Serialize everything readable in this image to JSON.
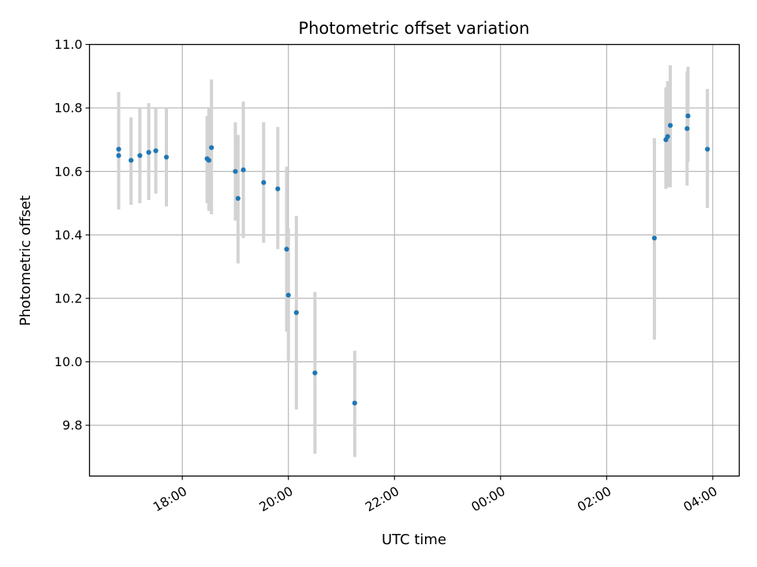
{
  "colors": {
    "point": "#1f77b4",
    "errorbar": "#d3d3d3",
    "grid": "#b0b0b0",
    "axis": "#000000"
  },
  "chart_data": {
    "type": "scatter",
    "title": "Photometric offset variation",
    "xlabel": "UTC time",
    "ylabel": "Photometric offset",
    "grid": true,
    "x_time_zero": "16:00",
    "xlim_hours": [
      16.25,
      28.5
    ],
    "ylim": [
      9.64,
      11.0
    ],
    "x_ticks": [
      "18:00",
      "20:00",
      "22:00",
      "00:00",
      "02:00",
      "04:00"
    ],
    "y_ticks": [
      "9.8",
      "10.0",
      "10.2",
      "10.4",
      "10.6",
      "10.8",
      "11.0"
    ],
    "points": [
      {
        "t": "16:48",
        "y": 10.67,
        "err_lo": 10.48,
        "err_hi": 10.85
      },
      {
        "t": "16:48",
        "y": 10.65,
        "err_lo": 10.49,
        "err_hi": 10.82
      },
      {
        "t": "17:02",
        "y": 10.635,
        "err_lo": 10.495,
        "err_hi": 10.77
      },
      {
        "t": "17:12",
        "y": 10.65,
        "err_lo": 10.5,
        "err_hi": 10.8
      },
      {
        "t": "17:22",
        "y": 10.66,
        "err_lo": 10.51,
        "err_hi": 10.815
      },
      {
        "t": "17:30",
        "y": 10.665,
        "err_lo": 10.53,
        "err_hi": 10.8
      },
      {
        "t": "17:42",
        "y": 10.645,
        "err_lo": 10.49,
        "err_hi": 10.8
      },
      {
        "t": "18:28",
        "y": 10.64,
        "err_lo": 10.5,
        "err_hi": 10.775
      },
      {
        "t": "18:30",
        "y": 10.635,
        "err_lo": 10.475,
        "err_hi": 10.8
      },
      {
        "t": "18:33",
        "y": 10.675,
        "err_lo": 10.465,
        "err_hi": 10.89
      },
      {
        "t": "19:00",
        "y": 10.6,
        "err_lo": 10.445,
        "err_hi": 10.755
      },
      {
        "t": "19:03",
        "y": 10.515,
        "err_lo": 10.31,
        "err_hi": 10.715
      },
      {
        "t": "19:09",
        "y": 10.605,
        "err_lo": 10.39,
        "err_hi": 10.82
      },
      {
        "t": "19:32",
        "y": 10.565,
        "err_lo": 10.375,
        "err_hi": 10.755
      },
      {
        "t": "19:48",
        "y": 10.545,
        "err_lo": 10.355,
        "err_hi": 10.74
      },
      {
        "t": "19:58",
        "y": 10.355,
        "err_lo": 10.095,
        "err_hi": 10.615
      },
      {
        "t": "20:00",
        "y": 10.21,
        "err_lo": 10.0,
        "err_hi": 10.42
      },
      {
        "t": "20:09",
        "y": 10.155,
        "err_lo": 9.85,
        "err_hi": 10.46
      },
      {
        "t": "20:30",
        "y": 9.965,
        "err_lo": 9.71,
        "err_hi": 10.22
      },
      {
        "t": "21:15",
        "y": 9.87,
        "err_lo": 9.7,
        "err_hi": 10.035
      },
      {
        "t": "02:54",
        "y": 10.39,
        "err_lo": 10.07,
        "err_hi": 10.705
      },
      {
        "t": "03:07",
        "y": 10.7,
        "err_lo": 10.545,
        "err_hi": 10.865
      },
      {
        "t": "03:09",
        "y": 10.71,
        "err_lo": 10.55,
        "err_hi": 10.885
      },
      {
        "t": "03:12",
        "y": 10.745,
        "err_lo": 10.55,
        "err_hi": 10.935
      },
      {
        "t": "03:31",
        "y": 10.735,
        "err_lo": 10.555,
        "err_hi": 10.915
      },
      {
        "t": "03:32",
        "y": 10.775,
        "err_lo": 10.63,
        "err_hi": 10.93
      },
      {
        "t": "03:54",
        "y": 10.67,
        "err_lo": 10.485,
        "err_hi": 10.86
      }
    ]
  }
}
